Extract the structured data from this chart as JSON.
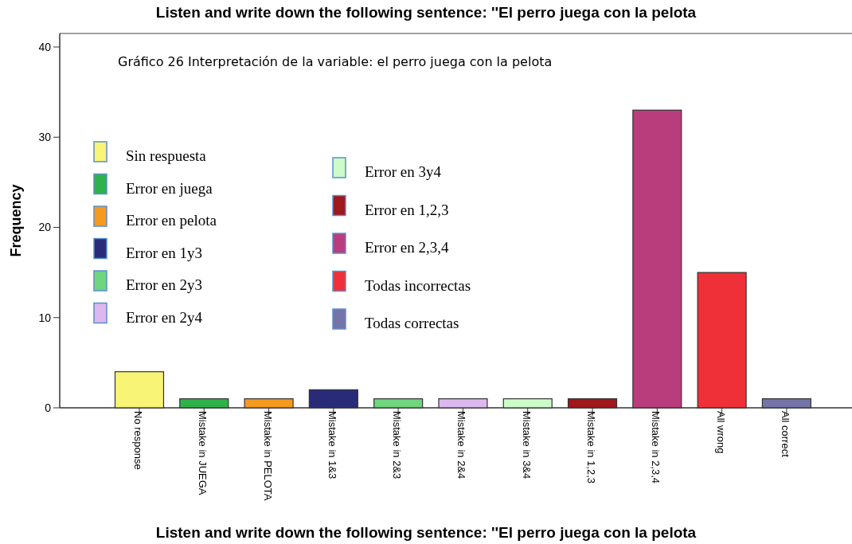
{
  "chart_data": {
    "type": "bar",
    "title": "Listen and write down the following sentence: ''El perro juega con la pelota",
    "subtitle": "Gráfico 26 Interpretación de la variable: el perro juega con la pelota",
    "xlabel": "Listen and write down the following sentence: ''El perro juega con la pelota",
    "ylabel": "Frequency",
    "categories": [
      "No response",
      "Mistake in JUEGA",
      "Mistake in PELOTA",
      "Mistake in 1&3",
      "Mistake in 2&3",
      "Mistake in 2&4",
      "Mistake in 3&4",
      "Mistake in 1,2,3",
      "Mistake in 2,3,4",
      "All wrong",
      "All correct"
    ],
    "stacked": true,
    "series": [
      {
        "name": "Sin respuesta",
        "color": "#f8f476",
        "values": [
          4,
          null,
          null,
          null,
          null,
          null,
          null,
          null,
          null,
          null,
          null
        ]
      },
      {
        "name": "Error en juega",
        "color": "#2fb24a",
        "values": [
          null,
          1,
          null,
          null,
          null,
          null,
          null,
          null,
          null,
          null,
          null
        ]
      },
      {
        "name": "Error en pelota",
        "color": "#f6991f",
        "values": [
          null,
          null,
          1,
          null,
          null,
          null,
          null,
          null,
          null,
          null,
          null
        ]
      },
      {
        "name": "Error en 1y3",
        "color": "#2a2b78",
        "values": [
          null,
          null,
          null,
          2,
          null,
          null,
          null,
          null,
          null,
          null,
          null
        ]
      },
      {
        "name": "Error en 2y3",
        "color": "#6fd57e",
        "values": [
          null,
          null,
          null,
          null,
          1,
          null,
          null,
          null,
          null,
          null,
          null
        ]
      },
      {
        "name": "Error en 2y4",
        "color": "#dcb8ee",
        "values": [
          null,
          null,
          null,
          null,
          null,
          1,
          null,
          null,
          null,
          null,
          null
        ]
      },
      {
        "name": "Error en 3y4",
        "color": "#ccfcc8",
        "values": [
          null,
          null,
          null,
          null,
          null,
          null,
          1,
          null,
          null,
          null,
          null
        ]
      },
      {
        "name": "Error en 1,2,3",
        "color": "#a0171c",
        "values": [
          null,
          null,
          null,
          null,
          null,
          null,
          null,
          1,
          null,
          null,
          null
        ]
      },
      {
        "name": "Error en 2,3,4",
        "color": "#b93d7d",
        "values": [
          null,
          null,
          null,
          null,
          null,
          null,
          null,
          null,
          33,
          null,
          null
        ]
      },
      {
        "name": "Todas incorrectas",
        "color": "#ef3038",
        "values": [
          null,
          null,
          null,
          null,
          null,
          null,
          null,
          null,
          null,
          15,
          null
        ]
      },
      {
        "name": "Todas correctas",
        "color": "#7474a8",
        "values": [
          null,
          null,
          null,
          null,
          null,
          null,
          null,
          null,
          null,
          null,
          1
        ]
      }
    ],
    "ylim": [
      0,
      41.5
    ],
    "yticks": [
      0,
      10,
      20,
      30,
      40
    ],
    "legend": "left"
  }
}
